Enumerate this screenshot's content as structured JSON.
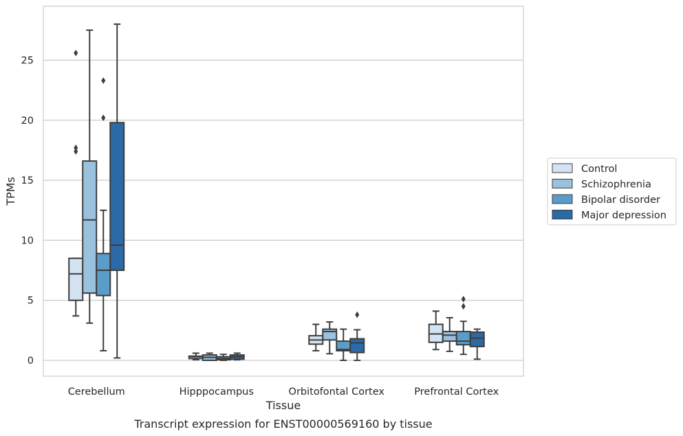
{
  "caption": "Transcript expression for ENST00000569160 by tissue",
  "chart_data": {
    "type": "box",
    "xlabel": "Tissue",
    "ylabel": "TPMs",
    "ylim": [
      -1.3,
      28.7
    ],
    "yticks": [
      0,
      5,
      10,
      15,
      20,
      25
    ],
    "grid": "horizontal",
    "legend_position": "right",
    "categories": [
      "Cerebellum",
      "Hipppocampus",
      "Orbitofontal Cortex",
      "Prefrontal Cortex"
    ],
    "series": [
      {
        "name": "Control",
        "color": "#d4e3f2",
        "boxes": [
          {
            "whisker_low": 3.7,
            "q1": 5.0,
            "median": 7.2,
            "q3": 8.5,
            "whisker_high": 8.5,
            "outliers": [
              17.4,
              17.7,
              25.6
            ]
          },
          {
            "whisker_low": 0.05,
            "q1": 0.15,
            "median": 0.3,
            "q3": 0.35,
            "whisker_high": 0.6,
            "outliers": []
          },
          {
            "whisker_low": 0.8,
            "q1": 1.35,
            "median": 1.7,
            "q3": 2.05,
            "whisker_high": 3.0,
            "outliers": []
          },
          {
            "whisker_low": 0.9,
            "q1": 1.5,
            "median": 2.2,
            "q3": 3.0,
            "whisker_high": 4.1,
            "outliers": []
          }
        ]
      },
      {
        "name": "Schizophrenia",
        "color": "#9ac1dd",
        "boxes": [
          {
            "whisker_low": 3.1,
            "q1": 5.6,
            "median": 11.7,
            "q3": 16.6,
            "whisker_high": 27.5,
            "outliers": []
          },
          {
            "whisker_low": 0.0,
            "q1": 0.0,
            "median": 0.25,
            "q3": 0.45,
            "whisker_high": 0.6,
            "outliers": []
          },
          {
            "whisker_low": 0.55,
            "q1": 1.7,
            "median": 2.4,
            "q3": 2.6,
            "whisker_high": 3.2,
            "outliers": []
          },
          {
            "whisker_low": 0.75,
            "q1": 1.6,
            "median": 2.1,
            "q3": 2.4,
            "whisker_high": 3.55,
            "outliers": []
          }
        ]
      },
      {
        "name": "Bipolar disorder",
        "color": "#5b9dc9",
        "boxes": [
          {
            "whisker_low": 0.8,
            "q1": 5.4,
            "median": 7.5,
            "q3": 8.9,
            "whisker_high": 12.5,
            "outliers": [
              20.2,
              23.3
            ]
          },
          {
            "whisker_low": 0.0,
            "q1": 0.05,
            "median": 0.15,
            "q3": 0.3,
            "whisker_high": 0.5,
            "outliers": []
          },
          {
            "whisker_low": 0.0,
            "q1": 0.8,
            "median": 0.9,
            "q3": 1.6,
            "whisker_high": 2.6,
            "outliers": []
          },
          {
            "whisker_low": 0.5,
            "q1": 1.3,
            "median": 1.6,
            "q3": 2.4,
            "whisker_high": 3.25,
            "outliers": [
              4.5,
              5.1
            ]
          }
        ]
      },
      {
        "name": "Major depression",
        "color": "#2b6aa6",
        "boxes": [
          {
            "whisker_low": 0.2,
            "q1": 7.5,
            "median": 9.6,
            "q3": 19.8,
            "whisker_high": 28.0,
            "outliers": []
          },
          {
            "whisker_low": 0.05,
            "q1": 0.1,
            "median": 0.3,
            "q3": 0.45,
            "whisker_high": 0.6,
            "outliers": []
          },
          {
            "whisker_low": 0.0,
            "q1": 0.65,
            "median": 1.45,
            "q3": 1.8,
            "whisker_high": 2.55,
            "outliers": [
              3.8
            ]
          },
          {
            "whisker_low": 0.1,
            "q1": 1.15,
            "median": 1.85,
            "q3": 2.35,
            "whisker_high": 2.6,
            "outliers": []
          }
        ]
      }
    ]
  }
}
